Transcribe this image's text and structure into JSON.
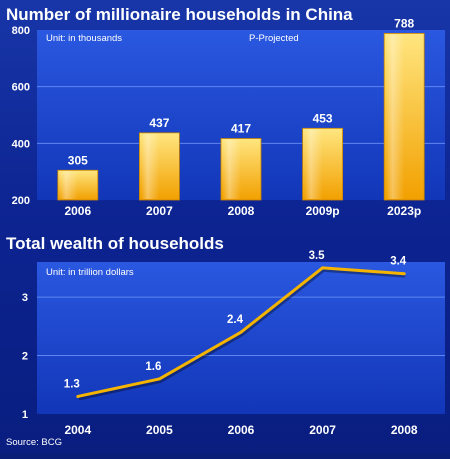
{
  "colors": {
    "background": "#0c2390",
    "plot_top": "#2a58e0",
    "plot_bottom": "#1236b8",
    "bar_light": "#ffe680",
    "bar_dark": "#f2a000",
    "line": "#f5b400",
    "text": "#ffffff"
  },
  "source": "Source: BCG",
  "chart_data": [
    {
      "type": "bar",
      "title": "Number of millionaire households in China",
      "unit_note": "Unit: in thousands",
      "projection_note": "P-Projected",
      "categories": [
        "2006",
        "2007",
        "2008",
        "2009p",
        "2023p"
      ],
      "values": [
        305,
        437,
        417,
        453,
        788
      ],
      "value_labels": [
        "305",
        "437",
        "417",
        "453",
        "788"
      ],
      "ylim": [
        200,
        800
      ],
      "yticks": [
        "200",
        "400",
        "600",
        "800"
      ],
      "grid": true,
      "xlabel": "",
      "ylabel": ""
    },
    {
      "type": "line",
      "title": "Total wealth of households",
      "unit_note": "Unit: in trillion dollars",
      "categories": [
        "2004",
        "2005",
        "2006",
        "2007",
        "2008"
      ],
      "values": [
        1.3,
        1.6,
        2.4,
        3.5,
        3.4
      ],
      "value_labels": [
        "1.3",
        "1.6",
        "2.4",
        "3.5",
        "3.4"
      ],
      "ylim": [
        1,
        3.6
      ],
      "yticks": [
        "1",
        "2",
        "3"
      ],
      "grid": true,
      "xlabel": "",
      "ylabel": ""
    }
  ]
}
